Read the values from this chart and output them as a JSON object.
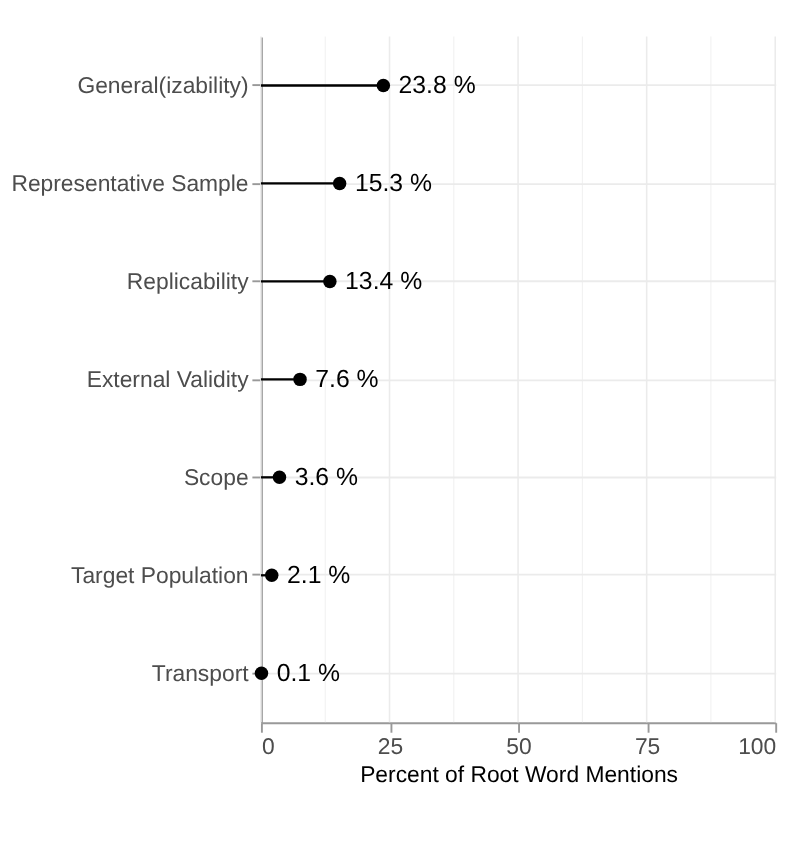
{
  "chart_data": {
    "type": "lollipop",
    "orientation": "horizontal",
    "xlabel": "Percent of Root Word Mentions",
    "categories": [
      "General(izability)",
      "Representative Sample",
      "Replicability",
      "External Validity",
      "Scope",
      "Target Population",
      "Transport"
    ],
    "values": [
      23.8,
      15.3,
      13.4,
      7.6,
      3.6,
      2.1,
      0.1
    ],
    "value_labels": [
      "23.8 %",
      "15.3 %",
      "13.4 %",
      "7.6 %",
      "3.6 %",
      "2.1 %",
      "0.1 %"
    ],
    "color": "#000000",
    "xlim": [
      0,
      100
    ],
    "xticks": [
      0,
      25,
      50,
      75,
      100
    ],
    "grid": true,
    "marker": "circle"
  }
}
